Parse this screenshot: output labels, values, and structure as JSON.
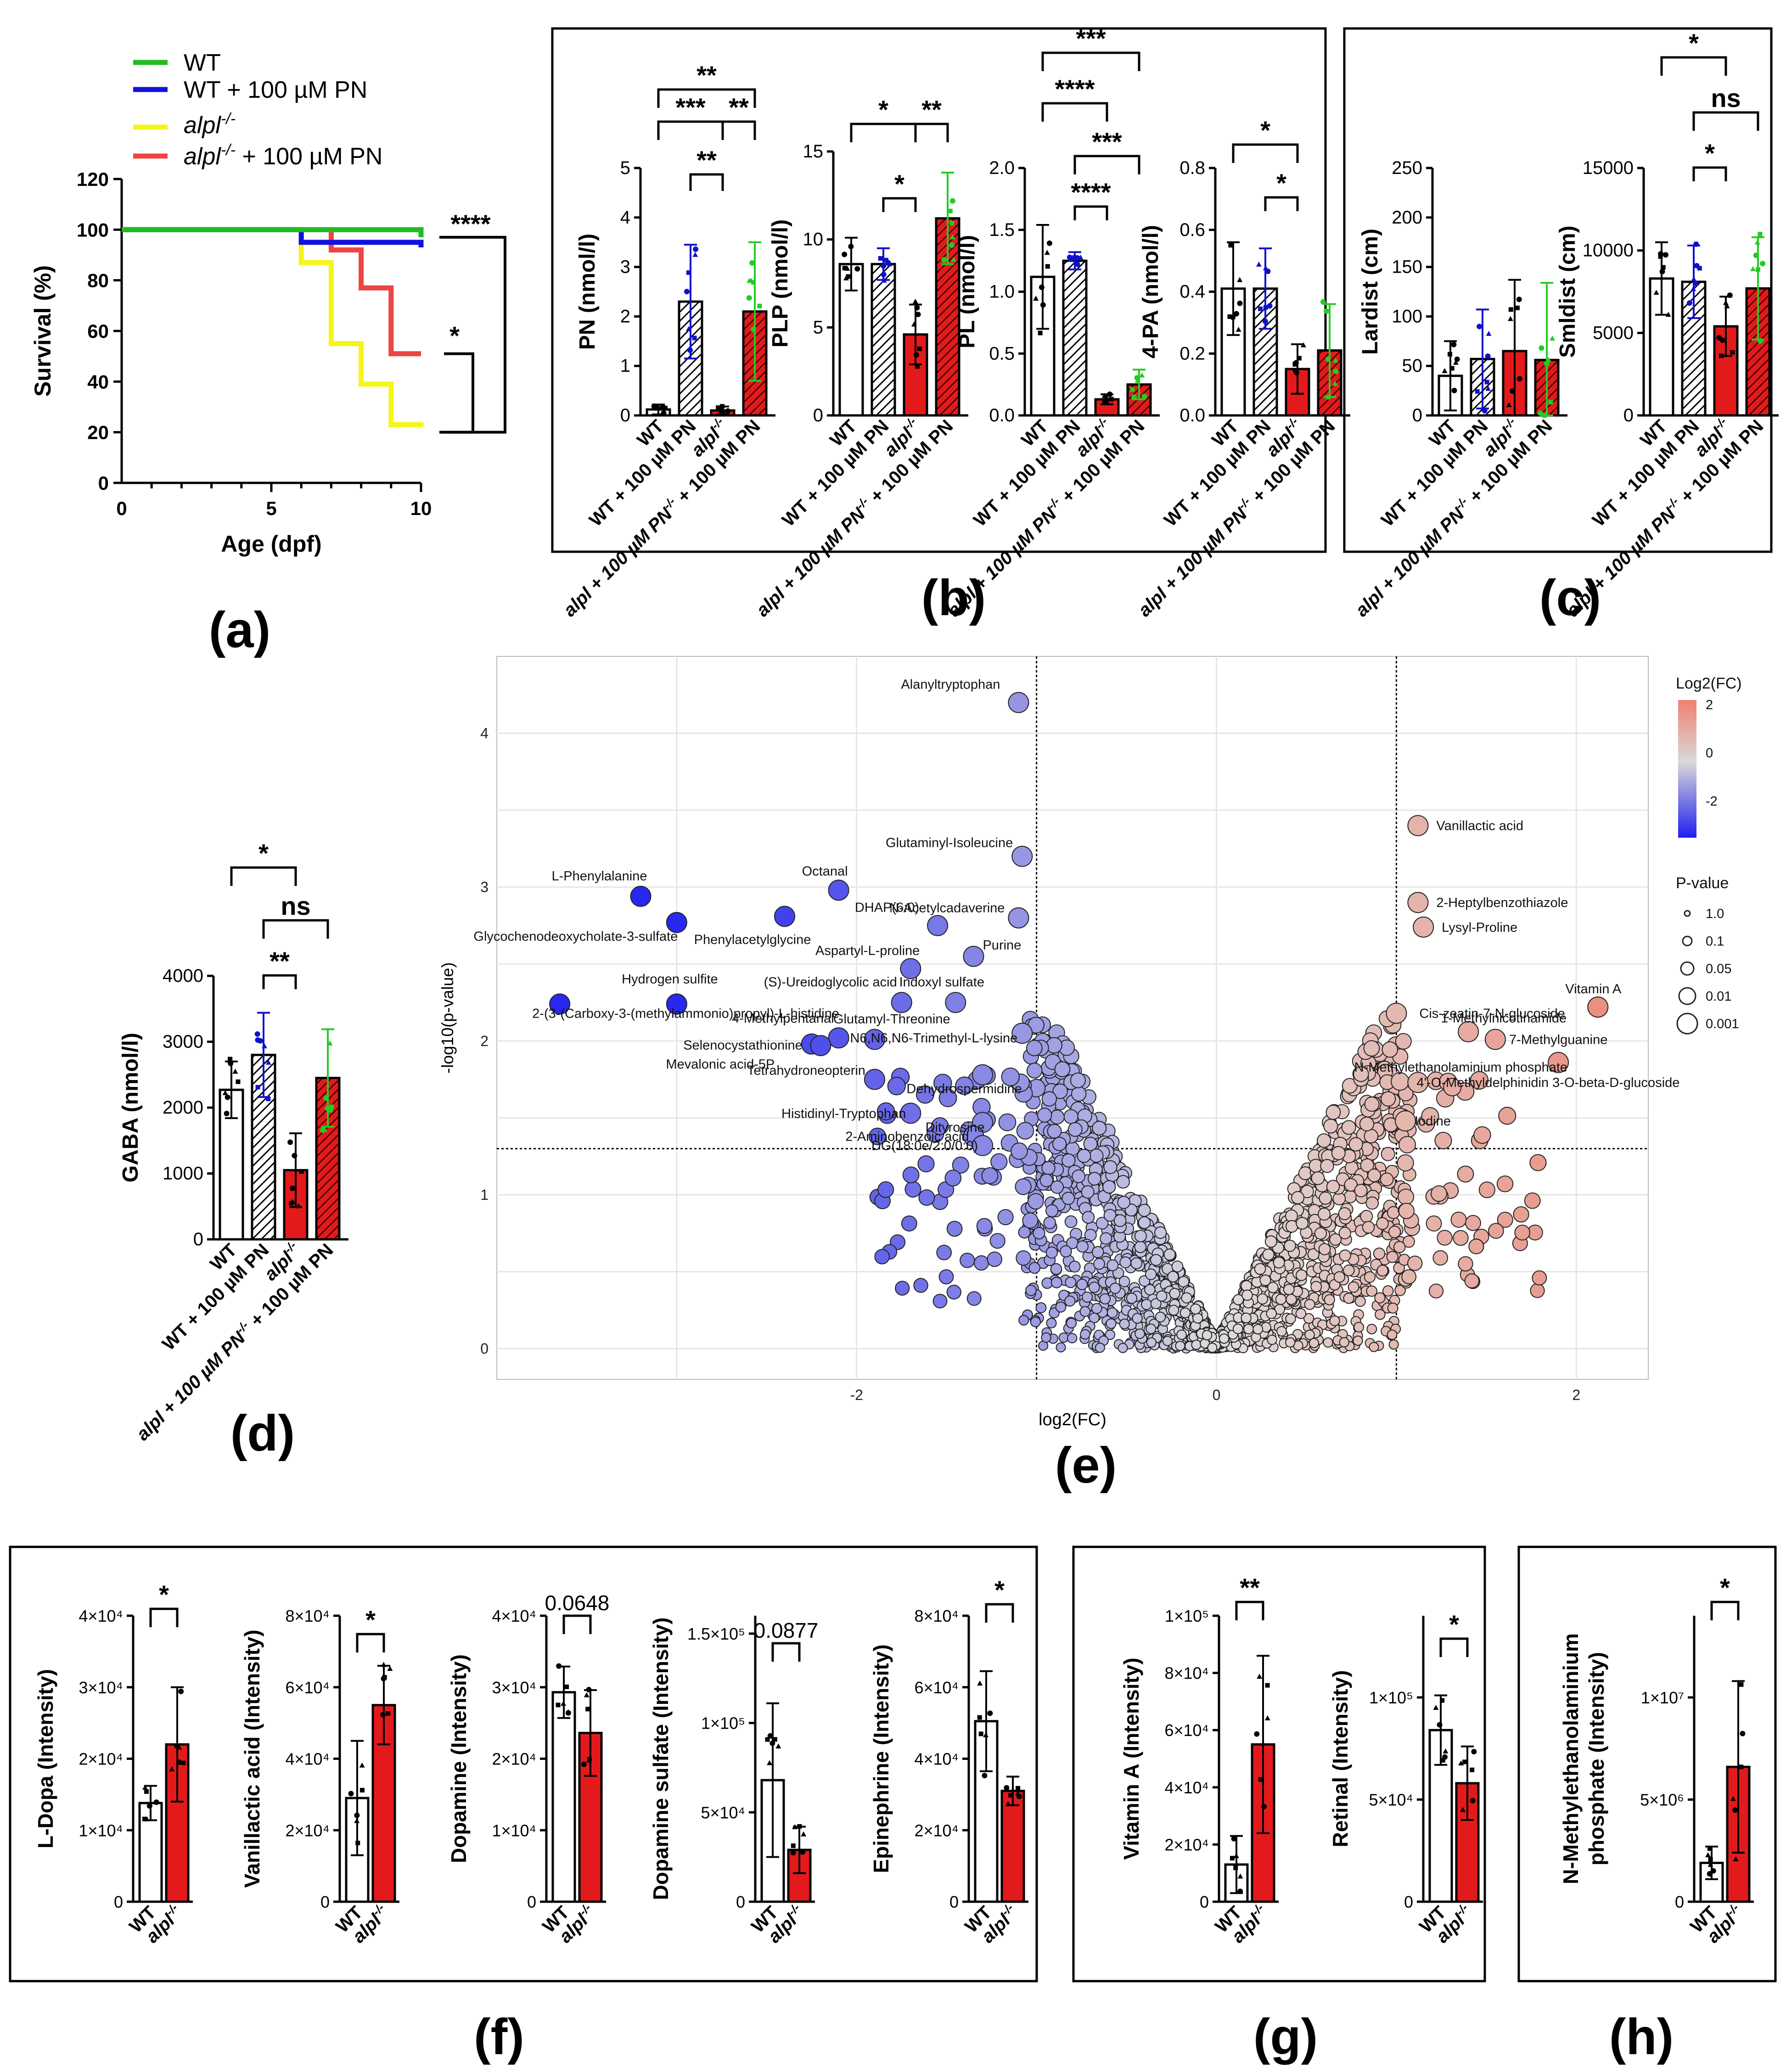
{
  "panel_labels": {
    "a": "(a)",
    "b": "(b)",
    "c": "(c)",
    "d": "(d)",
    "e": "(e)",
    "f": "(f)",
    "g": "(g)",
    "h": "(h)"
  },
  "colors": {
    "wt": "#22bb22",
    "wt_pn": "#1111dd",
    "alpl": "#f5f51a",
    "alpl_pn": "#ee4444",
    "bar_red": "#e31a1c",
    "green_pts": "#22cc22",
    "blue_pts": "#1010cc"
  },
  "groups": [
    "WT",
    "WT + 100 µM PN",
    "alpl",
    "alpl + 100 µM PN"
  ],
  "groups_short": [
    "WT",
    "alpl"
  ],
  "superscript": "-/-",
  "chart_data": [
    {
      "id": "a",
      "type": "line",
      "xlabel": "Age (dpf)",
      "ylabel": "Survival (%)",
      "xlim": [
        0,
        10
      ],
      "ylim": [
        0,
        120
      ],
      "xticks": [
        "0",
        "5",
        "10"
      ],
      "yticks": [
        "0",
        "20",
        "40",
        "60",
        "80",
        "100",
        "120"
      ],
      "legend": [
        {
          "name": "WT",
          "suffix": ""
        },
        {
          "name": "WT + 100 µM PN",
          "suffix": ""
        },
        {
          "name": "alpl",
          "suffix": ""
        },
        {
          "name": "alpl",
          "suffix": " + 100 µM PN"
        }
      ],
      "series": [
        {
          "name": "WT",
          "color": "#22bb22",
          "x": [
            0,
            10
          ],
          "y": [
            100,
            97
          ]
        },
        {
          "name": "WT + 100 µM PN",
          "color": "#1111dd",
          "x": [
            0,
            6,
            10
          ],
          "y": [
            100,
            95,
            93
          ]
        },
        {
          "name": "alpl",
          "color": "#f5f51a",
          "x": [
            0,
            6,
            7,
            8,
            9,
            10
          ],
          "y": [
            100,
            87,
            55,
            39,
            23,
            22
          ]
        },
        {
          "name": "alpl + 100 µM PN",
          "color": "#ee4444",
          "x": [
            0,
            6,
            7,
            8,
            9,
            10
          ],
          "y": [
            100,
            100,
            92,
            77,
            51,
            51
          ]
        }
      ],
      "significance": [
        "****",
        "*"
      ]
    },
    {
      "id": "b1",
      "type": "bar",
      "ylabel": "PN (nmol/l)",
      "ylim": [
        0,
        5
      ],
      "yticks": [
        "0",
        "1",
        "2",
        "3",
        "4",
        "5"
      ],
      "values": [
        0.12,
        2.3,
        0.1,
        2.1
      ],
      "errors": [
        0.1,
        1.15,
        0.08,
        1.4
      ],
      "significance": [
        "**",
        "***",
        "**",
        "**"
      ]
    },
    {
      "id": "b2",
      "type": "bar",
      "ylabel": "PLP (nmol/l)",
      "ylim": [
        0,
        15
      ],
      "yticks": [
        "0",
        "5",
        "10",
        "15"
      ],
      "values": [
        8.6,
        8.6,
        4.6,
        11.2
      ],
      "errors": [
        1.5,
        0.9,
        1.7,
        2.6
      ],
      "significance": [
        "*",
        "**",
        "*"
      ]
    },
    {
      "id": "b3",
      "type": "bar",
      "ylabel": "PL (nmol/l)",
      "ylim": [
        0,
        2.0
      ],
      "yticks": [
        "0.0",
        "0.5",
        "1.0",
        "1.5",
        "2.0"
      ],
      "values": [
        1.12,
        1.25,
        0.13,
        0.25
      ],
      "errors": [
        0.42,
        0.07,
        0.04,
        0.12
      ],
      "significance": [
        "***",
        "****",
        "***",
        "****"
      ]
    },
    {
      "id": "b4",
      "type": "bar",
      "ylabel": "4-PA (nmol/l)",
      "ylim": [
        0,
        0.8
      ],
      "yticks": [
        "0.0",
        "0.2",
        "0.4",
        "0.6",
        "0.8"
      ],
      "values": [
        0.41,
        0.41,
        0.15,
        0.21
      ],
      "errors": [
        0.15,
        0.13,
        0.08,
        0.15
      ],
      "significance": [
        "*",
        "*"
      ]
    },
    {
      "id": "c1",
      "type": "bar",
      "ylabel": "Lardist (cm)",
      "ylim": [
        0,
        250
      ],
      "yticks": [
        "0",
        "50",
        "100",
        "150",
        "200",
        "250"
      ],
      "values": [
        40,
        57,
        65,
        56
      ],
      "errors": [
        35,
        50,
        72,
        78
      ],
      "significance": []
    },
    {
      "id": "c2",
      "type": "bar",
      "ylabel": "Smldist (cm)",
      "ylim": [
        0,
        15000
      ],
      "yticks": [
        "0",
        "5000",
        "10000",
        "15000"
      ],
      "values": [
        8300,
        8100,
        5400,
        7700
      ],
      "errors": [
        2200,
        2200,
        1800,
        3100
      ],
      "significance": [
        "*",
        "ns",
        "*"
      ]
    },
    {
      "id": "d",
      "type": "bar",
      "ylabel": "GABA (nmol/l)",
      "ylim": [
        0,
        4000
      ],
      "yticks": [
        "0",
        "1000",
        "2000",
        "3000",
        "4000"
      ],
      "values": [
        2270,
        2800,
        1050,
        2450
      ],
      "errors": [
        430,
        640,
        560,
        740
      ],
      "significance": [
        "*",
        "ns",
        "**"
      ]
    },
    {
      "id": "e",
      "type": "scatter",
      "title": "",
      "xlabel": "log2(FC)",
      "ylabel": "-log10(p-value)",
      "xlim": [
        -4,
        2.4
      ],
      "ylim": [
        -0.2,
        4.5
      ],
      "xticks": [
        "-2",
        "0",
        "2"
      ],
      "yticks": [
        "0",
        "1",
        "2",
        "3",
        "4"
      ],
      "thresholds": {
        "x": [
          -1,
          1
        ],
        "y": 1.3
      },
      "legend": {
        "color_title": "Log2(FC)",
        "color_ticks": [
          "2",
          "0",
          "-2"
        ],
        "size_title": "P-value",
        "size_ticks": [
          "1.0",
          "0.1",
          "0.05",
          "0.01",
          "0.001"
        ]
      },
      "labeled_points": [
        {
          "label": "Alanyltryptophan",
          "x": -1.1,
          "y": 4.2
        },
        {
          "label": "Glutaminyl-Isoleucine",
          "x": -1.08,
          "y": 3.2
        },
        {
          "label": "L-Phenylalanine",
          "x": -3.2,
          "y": 2.94
        },
        {
          "label": "Octanal",
          "x": -2.1,
          "y": 2.98
        },
        {
          "label": "Glycochenodeoxycholate-3-sulfate",
          "x": -3.0,
          "y": 2.77
        },
        {
          "label": "Phenylacetylglycine",
          "x": -2.4,
          "y": 2.81
        },
        {
          "label": "N-Acetylcadaverine",
          "x": -1.1,
          "y": 2.8
        },
        {
          "label": "DHAP(6:0)",
          "x": -1.55,
          "y": 2.75
        },
        {
          "label": "Aspartyl-L-proline",
          "x": -1.7,
          "y": 2.47
        },
        {
          "label": "Purine",
          "x": -1.35,
          "y": 2.55
        },
        {
          "label": "Hydrogen sulfite",
          "x": -3.0,
          "y": 2.24
        },
        {
          "label": "(S)-Ureidoglycolic acid",
          "x": -1.75,
          "y": 2.25
        },
        {
          "label": "Indoxyl sulfate",
          "x": -1.45,
          "y": 2.25
        },
        {
          "label": "2-(3-(Carboxy-3-(methylammonio)propyl)-L-histidine",
          "x": -3.65,
          "y": 2.24
        },
        {
          "label": "4-Methylpentanal",
          "x": -2.1,
          "y": 2.02
        },
        {
          "label": "Glutamyl-Threonine",
          "x": -1.9,
          "y": 2.01
        },
        {
          "label": "Selenocystathionine",
          "x": -2.25,
          "y": 1.98
        },
        {
          "label": "N6,N6,N6-Trimethyl-L-lysine",
          "x": -1.08,
          "y": 2.05
        },
        {
          "label": "Mevalonic acid-5P",
          "x": -2.2,
          "y": 1.97
        },
        {
          "label": "Tetrahydroneopterin",
          "x": -1.9,
          "y": 1.75
        },
        {
          "label": "Dehydrospermidine",
          "x": -1.3,
          "y": 1.78
        },
        {
          "label": "Histidinyl-Tryptophan",
          "x": -1.7,
          "y": 1.53
        },
        {
          "label": "Dityrosine",
          "x": -1.3,
          "y": 1.47
        },
        {
          "label": "2-Aminobenzoic acid",
          "x": -1.35,
          "y": 1.38
        },
        {
          "label": "DG(18:0e/2:0/0:0)",
          "x": -1.3,
          "y": 1.32
        },
        {
          "label": "Vanillactic acid",
          "x": 1.12,
          "y": 3.4
        },
        {
          "label": "2-Heptylbenzothiazole",
          "x": 1.12,
          "y": 2.9
        },
        {
          "label": "Lysyl-Proline",
          "x": 1.15,
          "y": 2.74
        },
        {
          "label": "Vitamin A",
          "x": 2.12,
          "y": 2.22
        },
        {
          "label": "Cis-zeatin-7-N-glucoside",
          "x": 1.0,
          "y": 2.18
        },
        {
          "label": "7-Methylguanine",
          "x": 1.55,
          "y": 2.01
        },
        {
          "label": "1-Methylnicotinamide",
          "x": 1.4,
          "y": 2.06
        },
        {
          "label": "N-Methylethanolaminium phosphate",
          "x": 1.9,
          "y": 1.86
        },
        {
          "label": "4'-O-Methyldelphinidin 3-O-beta-D-glucoside",
          "x": 1.12,
          "y": 1.73
        },
        {
          "label": "Iodine",
          "x": 1.05,
          "y": 1.48
        }
      ]
    },
    {
      "id": "f1",
      "type": "bar",
      "ylabel": "L-Dopa (Intensity)",
      "ylim": [
        0,
        40000
      ],
      "yticks": [
        "0",
        "1×10⁴",
        "2×10⁴",
        "3×10⁴",
        "4×10⁴"
      ],
      "values": [
        13800,
        22000
      ],
      "errors": [
        2400,
        8000
      ],
      "significance": [
        "*"
      ]
    },
    {
      "id": "f2",
      "type": "bar",
      "ylabel": "Vanillactic acid (Intensity)",
      "ylim": [
        0,
        80000
      ],
      "yticks": [
        "0",
        "2×10⁴",
        "4×10⁴",
        "6×10⁴",
        "8×10⁴"
      ],
      "values": [
        29000,
        55000
      ],
      "errors": [
        16000,
        11000
      ],
      "significance": [
        "*"
      ]
    },
    {
      "id": "f3",
      "type": "bar",
      "ylabel": "Dopamine (Intensity)",
      "ylim": [
        0,
        40000
      ],
      "yticks": [
        "0",
        "1×10⁴",
        "2×10⁴",
        "3×10⁴",
        "4×10⁴"
      ],
      "values": [
        29300,
        23600
      ],
      "errors": [
        3600,
        6000
      ],
      "significance": [
        "0.0648"
      ]
    },
    {
      "id": "f4",
      "type": "bar",
      "ylabel": "Dopamine sulfate (Intensity)",
      "ylim": [
        0,
        160000
      ],
      "yticks": [
        "0",
        "5×10⁴",
        "1×10⁵",
        "1.5×10⁵"
      ],
      "values": [
        68000,
        29000
      ],
      "errors": [
        43000,
        13000
      ],
      "significance": [
        "0.0877"
      ]
    },
    {
      "id": "f5",
      "type": "bar",
      "ylabel": "Epinephrine (Intensity)",
      "ylim": [
        0,
        80000
      ],
      "yticks": [
        "0",
        "2×10⁴",
        "4×10⁴",
        "6×10⁴",
        "8×10⁴"
      ],
      "values": [
        50500,
        31000
      ],
      "errors": [
        14000,
        4000
      ],
      "significance": [
        "*"
      ]
    },
    {
      "id": "g1",
      "type": "bar",
      "ylabel": "Vitamin A (Intensity)",
      "ylim": [
        0,
        100000
      ],
      "yticks": [
        "0",
        "2×10⁴",
        "4×10⁴",
        "6×10⁴",
        "8×10⁴",
        "1×10⁵"
      ],
      "values": [
        13000,
        55000
      ],
      "errors": [
        10000,
        31000
      ],
      "significance": [
        "**"
      ]
    },
    {
      "id": "g2",
      "type": "bar",
      "ylabel": "Retinal (Intensity)",
      "ylim": [
        0,
        140000
      ],
      "yticks": [
        "0",
        "5×10⁴",
        "1×10⁵"
      ],
      "values": [
        84000,
        58000
      ],
      "errors": [
        17000,
        18000
      ],
      "significance": [
        "*"
      ]
    },
    {
      "id": "h1",
      "type": "bar",
      "ylabel": "N-Methylethanolaminium phosphate (Intensity)",
      "ylabel_lines": [
        "N-Methylethanolaminium",
        "phosphate (Intensity)"
      ],
      "ylim": [
        0,
        14000000
      ],
      "yticks": [
        "0",
        "5×10⁶",
        "1×10⁷"
      ],
      "values": [
        1900000,
        6600000
      ],
      "errors": [
        800000,
        4200000
      ],
      "significance": [
        "*"
      ]
    }
  ]
}
